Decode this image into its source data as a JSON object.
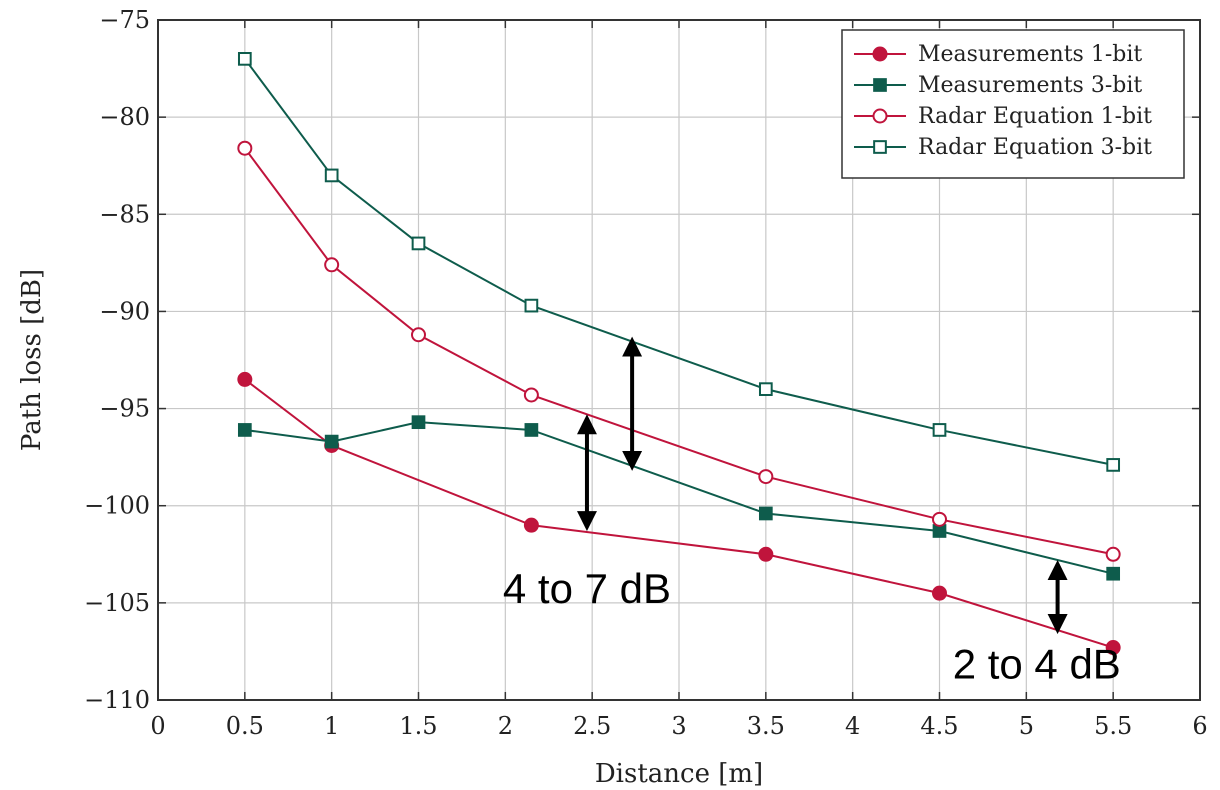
{
  "chart_data": {
    "type": "line",
    "title": "",
    "xlabel": "Distance [m]",
    "ylabel": "Path loss [dB]",
    "xlim": [
      0,
      6
    ],
    "ylim": [
      -110,
      -75
    ],
    "xticks": [
      0,
      0.5,
      1,
      1.5,
      2,
      2.5,
      3,
      3.5,
      4,
      4.5,
      5,
      5.5,
      6
    ],
    "xtick_labels": [
      "0",
      "0.5",
      "1",
      "1.5",
      "2",
      "2.5",
      "3",
      "3.5",
      "4",
      "4.5",
      "5",
      "5.5",
      "6"
    ],
    "yticks": [
      -110,
      -105,
      -100,
      -95,
      -90,
      -85,
      -80,
      -75
    ],
    "ytick_labels": [
      "−110",
      "−105",
      "−100",
      "−95",
      "−90",
      "−85",
      "−80",
      "−75"
    ],
    "grid": true,
    "legend_position": "top-right",
    "series": [
      {
        "name": "Measurements 1-bit",
        "color": "#c0143c",
        "marker": "circle-filled",
        "x": [
          0.5,
          1,
          2.15,
          3.5,
          4.5,
          5.5
        ],
        "y": [
          -93.5,
          -96.9,
          -101.0,
          -102.5,
          -104.5,
          -107.3
        ]
      },
      {
        "name": "Measurements 3-bit",
        "color": "#0e5c4c",
        "marker": "square-filled",
        "x": [
          0.5,
          1,
          1.5,
          2.15,
          3.5,
          4.5,
          5.5
        ],
        "y": [
          -96.1,
          -96.7,
          -95.7,
          -96.1,
          -100.4,
          -101.3,
          -103.5
        ]
      },
      {
        "name": "Radar Equation 1-bit",
        "color": "#c0143c",
        "marker": "circle-open",
        "x": [
          0.5,
          1,
          1.5,
          2.15,
          3.5,
          4.5,
          5.5
        ],
        "y": [
          -81.6,
          -87.6,
          -91.2,
          -94.3,
          -98.5,
          -100.7,
          -102.5
        ]
      },
      {
        "name": "Radar Equation 3-bit",
        "color": "#0e5c4c",
        "marker": "square-open",
        "x": [
          0.5,
          1,
          1.5,
          2.15,
          3.5,
          4.5,
          5.5
        ],
        "y": [
          -77.0,
          -83.0,
          -86.5,
          -89.7,
          -94.0,
          -96.1,
          -97.9
        ]
      }
    ],
    "annotations": [
      {
        "text": "4 to 7 dB",
        "arrows": [
          {
            "x": 2.73,
            "y_from": -91.5,
            "y_to": -98.0
          },
          {
            "x": 2.47,
            "y_from": -95.5,
            "y_to": -101.1
          }
        ],
        "text_x": 2.47,
        "text_y": -105.0
      },
      {
        "text": "2 to 4 dB",
        "arrows": [
          {
            "x": 5.18,
            "y_from": -103.0,
            "y_to": -106.4
          }
        ],
        "text_x": 5.06,
        "text_y": -108.9
      }
    ]
  }
}
